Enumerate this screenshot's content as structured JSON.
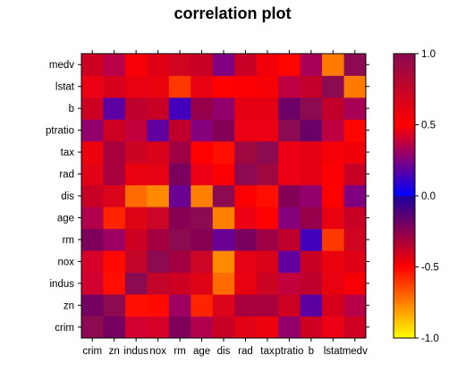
{
  "chart_data": {
    "type": "heatmap",
    "title": "correlation plot",
    "variables": [
      "crim",
      "zn",
      "indus",
      "nox",
      "rm",
      "age",
      "dis",
      "rad",
      "tax",
      "ptratio",
      "b",
      "lstat",
      "medv"
    ],
    "matrix": [
      [
        1.0,
        -0.2,
        0.41,
        0.42,
        -0.22,
        0.35,
        -0.38,
        0.63,
        0.58,
        0.29,
        -0.39,
        0.46,
        -0.39
      ],
      [
        -0.2,
        1.0,
        -0.53,
        -0.52,
        0.31,
        -0.57,
        0.66,
        -0.31,
        -0.31,
        -0.39,
        0.18,
        -0.41,
        0.36
      ],
      [
        0.41,
        -0.53,
        1.0,
        0.76,
        -0.39,
        0.64,
        -0.71,
        0.6,
        0.72,
        0.38,
        -0.36,
        0.6,
        -0.48
      ],
      [
        0.42,
        -0.52,
        0.76,
        1.0,
        -0.3,
        0.73,
        -0.77,
        0.61,
        0.67,
        0.19,
        -0.38,
        0.59,
        -0.43
      ],
      [
        -0.22,
        0.31,
        -0.39,
        -0.3,
        1.0,
        -0.24,
        0.21,
        -0.21,
        -0.29,
        -0.36,
        0.13,
        -0.61,
        0.7
      ],
      [
        0.35,
        -0.57,
        0.64,
        0.73,
        -0.24,
        1.0,
        -0.75,
        0.46,
        0.51,
        0.26,
        -0.27,
        0.6,
        -0.38
      ],
      [
        -0.38,
        0.66,
        -0.71,
        -0.77,
        0.21,
        -0.75,
        1.0,
        -0.49,
        -0.53,
        -0.23,
        0.29,
        -0.5,
        0.25
      ],
      [
        0.63,
        -0.31,
        0.6,
        0.61,
        -0.21,
        0.46,
        -0.49,
        1.0,
        0.91,
        0.46,
        -0.44,
        0.49,
        -0.38
      ],
      [
        0.58,
        -0.31,
        0.72,
        0.67,
        -0.29,
        0.51,
        -0.53,
        0.91,
        1.0,
        0.46,
        -0.44,
        0.54,
        -0.47
      ],
      [
        0.29,
        -0.39,
        0.38,
        0.19,
        -0.36,
        0.26,
        -0.23,
        0.46,
        0.46,
        1.0,
        -0.18,
        0.37,
        -0.51
      ],
      [
        -0.39,
        0.18,
        -0.36,
        -0.38,
        0.13,
        -0.27,
        0.29,
        -0.44,
        -0.44,
        -0.18,
        1.0,
        -0.37,
        0.33
      ],
      [
        0.46,
        -0.41,
        0.6,
        0.59,
        -0.61,
        0.6,
        -0.5,
        0.49,
        0.54,
        0.37,
        -0.37,
        1.0,
        -0.74
      ],
      [
        -0.39,
        0.36,
        -0.48,
        -0.43,
        0.7,
        -0.38,
        0.25,
        -0.38,
        -0.47,
        -0.51,
        0.33,
        -0.74,
        1.0
      ]
    ],
    "colorbar": {
      "range": [
        -1.0,
        1.0
      ],
      "ticks": [
        1.0,
        0.5,
        0.0,
        -0.5,
        -1.0
      ],
      "tick_labels": [
        "1.0",
        "0.5",
        "0.0",
        "-0.5",
        "-1.0"
      ]
    },
    "colors": {
      "neg1": "#ffff00",
      "neg05": "#ff0000",
      "zero_low": "#1a00a0",
      "zero_high": "#0000ff",
      "pos05": "#ff0000",
      "pos1": "#8b0a50"
    },
    "grid": false
  }
}
